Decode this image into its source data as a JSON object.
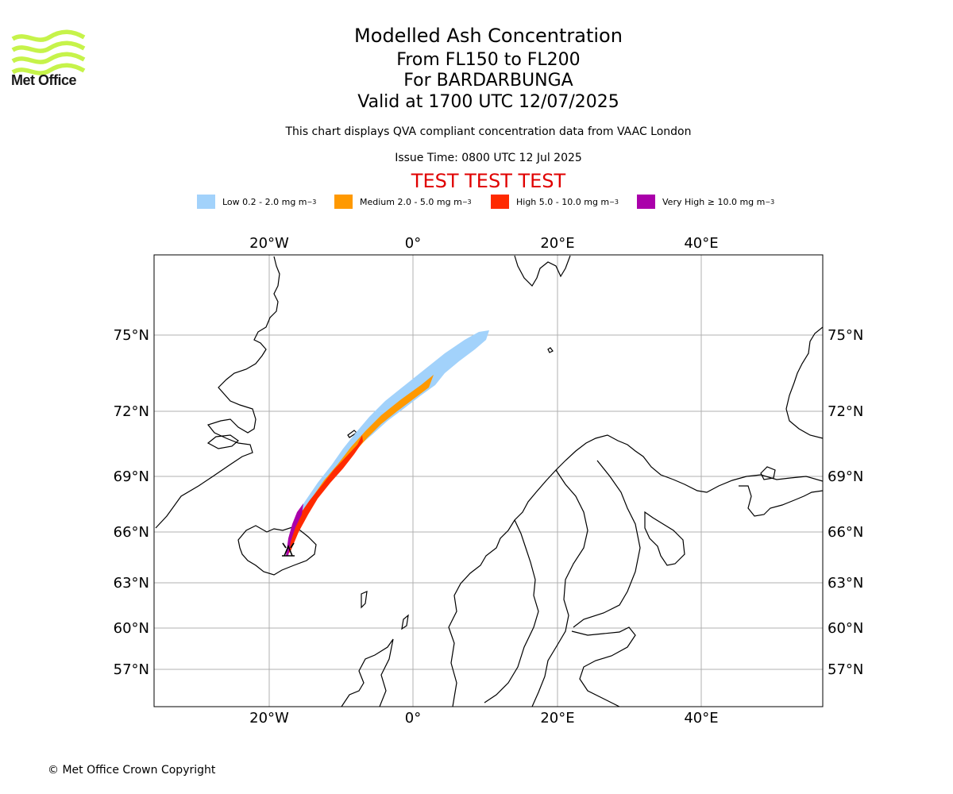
{
  "logo": {
    "text": "Met Office",
    "color": "#c6f34a"
  },
  "header": {
    "title": "Modelled Ash Concentration",
    "level_range": "From FL150 to FL200",
    "volcano": "For BARDARBUNGA",
    "valid_time": "Valid at 1700 UTC 12/07/2025",
    "description": "This chart displays QVA compliant concentration data from VAAC London",
    "issue_time": "Issue Time: 0800 UTC 12 Jul 2025",
    "test_banner": "TEST TEST TEST"
  },
  "legend": [
    {
      "label": "Low 0.2 - 2.0 mg m",
      "color": "#a2d2fb"
    },
    {
      "label": "Medium 2.0 - 5.0 mg m",
      "color": "#ff9900"
    },
    {
      "label": "High 5.0 - 10.0 mg m",
      "color": "#ff2a00"
    },
    {
      "label": "Very High  ≥  10.0 mg m",
      "color": "#aa00aa"
    }
  ],
  "legend_unit_exponent": "−3",
  "axes": {
    "lon_labels": [
      "20°W",
      "0°",
      "20°E",
      "40°E"
    ],
    "lat_labels": [
      "75°N",
      "72°N",
      "69°N",
      "66°N",
      "63°N",
      "60°N",
      "57°N"
    ]
  },
  "footer": {
    "copyright": "© Met Office Crown Copyright"
  }
}
